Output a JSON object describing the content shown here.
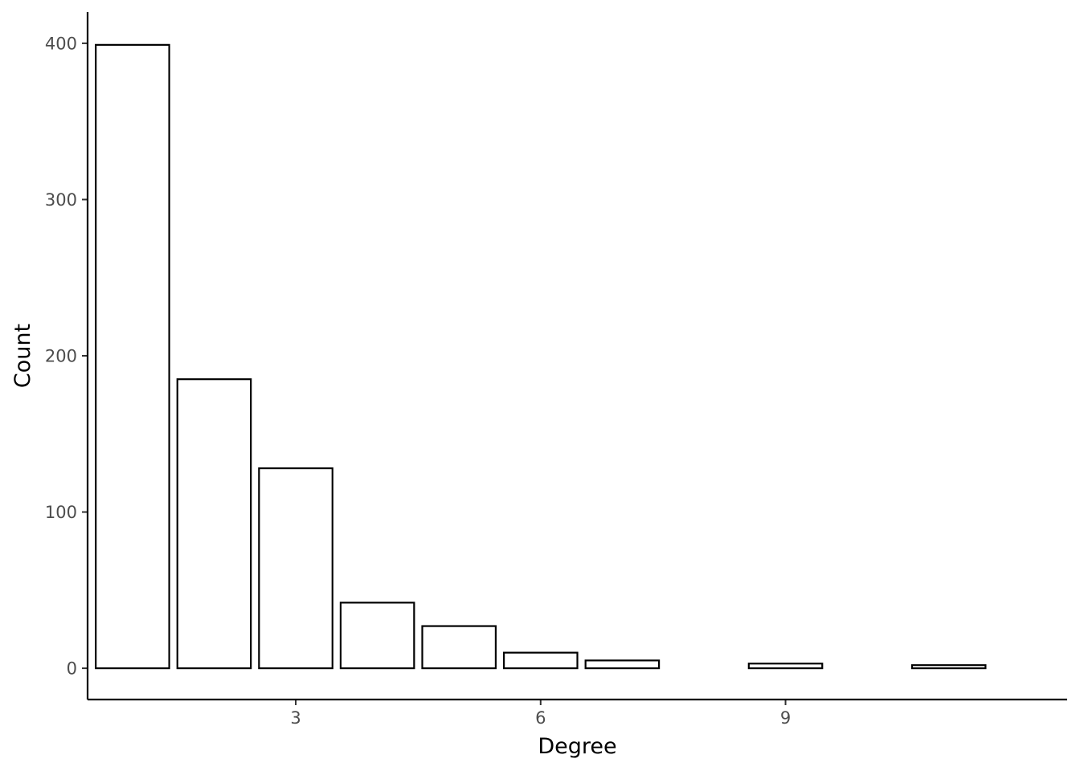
{
  "chart_data": {
    "type": "bar",
    "title": "",
    "xlabel": "Degree",
    "ylabel": "Count",
    "x": [
      1,
      2,
      3,
      4,
      5,
      6,
      7,
      9,
      11
    ],
    "values": [
      399,
      185,
      128,
      42,
      27,
      10,
      5,
      3,
      2
    ],
    "xlim": [
      0.45,
      12.45
    ],
    "ylim": [
      -20,
      420
    ],
    "x_ticks": [
      3,
      6,
      9
    ],
    "x_tick_labels": [
      "3",
      "6",
      "9"
    ],
    "y_ticks": [
      0,
      100,
      200,
      300,
      400
    ],
    "y_tick_labels": [
      "0",
      "100",
      "200",
      "300",
      "400"
    ],
    "grid": false,
    "legend": "none",
    "bar_fill": "#ffffff",
    "bar_outline": "#000000"
  }
}
